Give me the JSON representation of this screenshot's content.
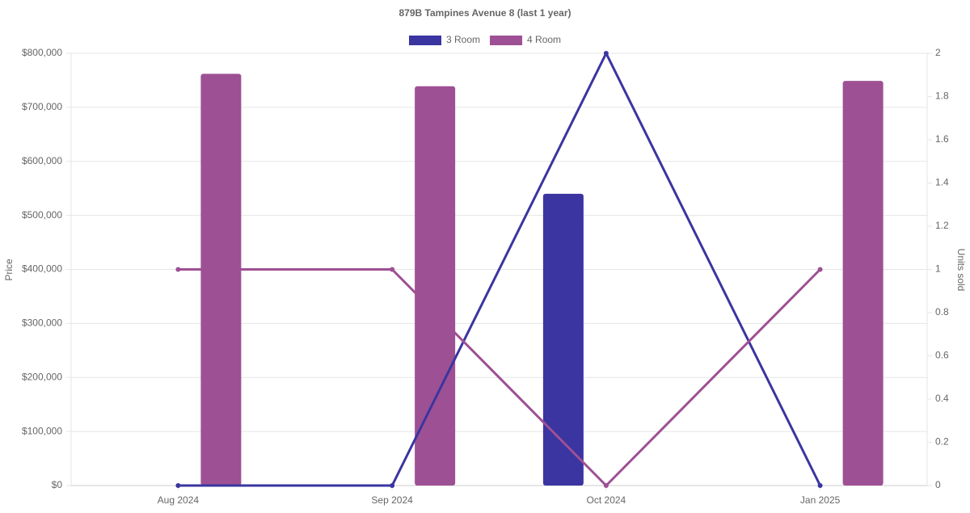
{
  "chart_data": {
    "type": "bar-line",
    "title": "879B Tampines Avenue 8 (last 1 year)",
    "categories": [
      "Aug 2024",
      "Sep 2024",
      "Oct 2024",
      "Jan 2025"
    ],
    "y_label": "Price",
    "y2_label": "Units sold",
    "series": [
      {
        "name": "3 Room",
        "color": "#3a35a0",
        "values": [
          null,
          null,
          540000,
          null
        ],
        "units": [
          0,
          0,
          2,
          0
        ]
      },
      {
        "name": "4 Room",
        "color": "#9e5094",
        "values": [
          762000,
          739000,
          null,
          749000
        ],
        "units": [
          1,
          1,
          0,
          1
        ]
      }
    ],
    "ylim": [
      0,
      800000
    ],
    "yticks": [
      {
        "value": 0,
        "label": "$0"
      },
      {
        "value": 100000,
        "label": "$100,000"
      },
      {
        "value": 200000,
        "label": "$200,000"
      },
      {
        "value": 300000,
        "label": "$300,000"
      },
      {
        "value": 400000,
        "label": "$400,000"
      },
      {
        "value": 500000,
        "label": "$500,000"
      },
      {
        "value": 600000,
        "label": "$600,000"
      },
      {
        "value": 700000,
        "label": "$700,000"
      },
      {
        "value": 800000,
        "label": "$800,000"
      }
    ],
    "y2lim": [
      0,
      2
    ],
    "y2ticks": [
      0,
      0.2,
      0.4,
      0.6,
      0.8,
      1,
      1.2,
      1.4,
      1.6,
      1.8,
      2
    ],
    "grid": true,
    "legend": "top"
  }
}
